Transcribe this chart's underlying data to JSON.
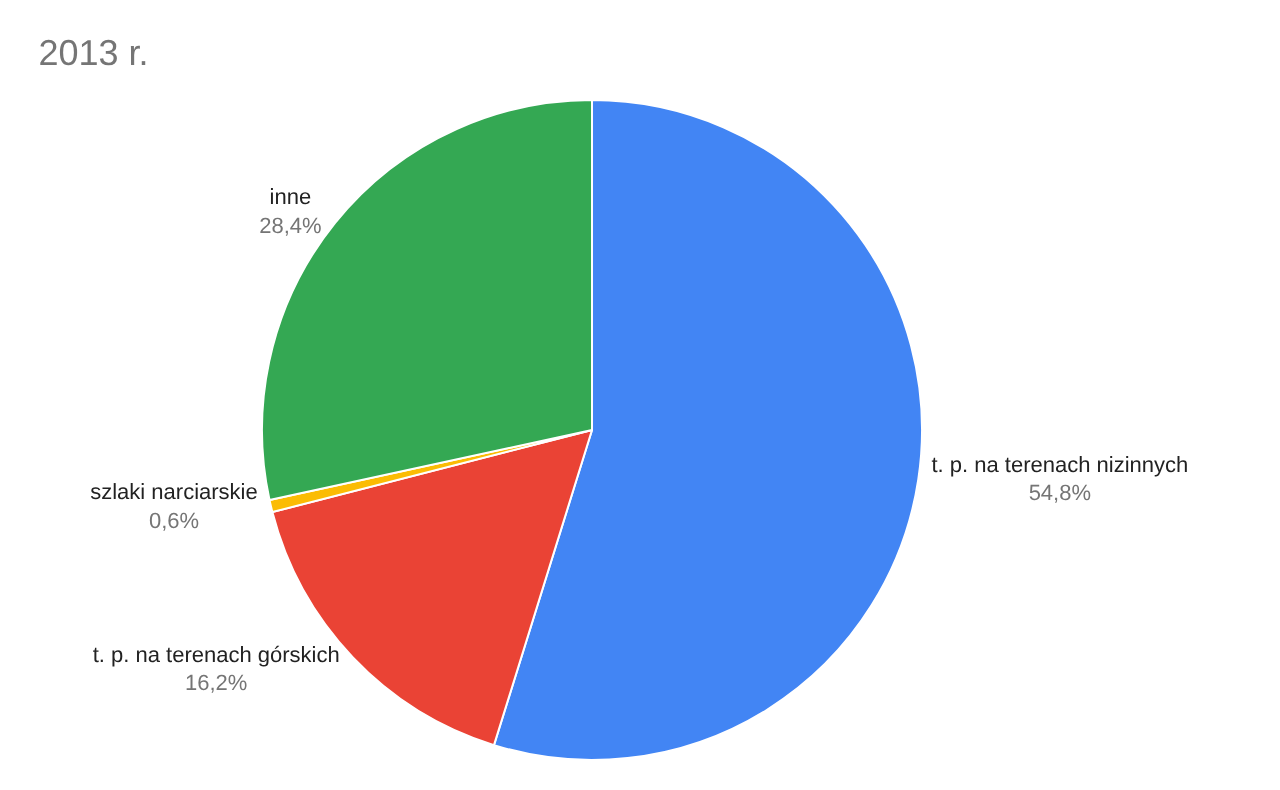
{
  "chart_data": {
    "type": "pie",
    "title": "2013 r.",
    "categories": [
      "t. p. na terenach nizinnych",
      "t. p. na terenach górskich",
      "szlaki narciarskie",
      "inne"
    ],
    "values": [
      54.8,
      16.2,
      0.6,
      28.4
    ],
    "value_labels": [
      "54,8%",
      "16,2%",
      "0,6%",
      "28,4%"
    ],
    "colors": [
      "#4285f4",
      "#ea4335",
      "#fbbc04",
      "#34a853"
    ],
    "legend": false
  }
}
